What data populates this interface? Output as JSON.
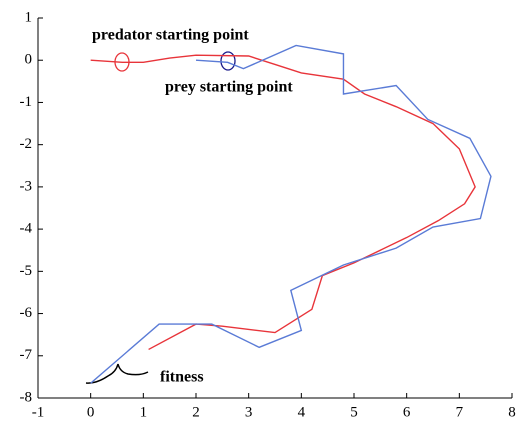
{
  "chart_data": {
    "type": "line",
    "annotations": [
      "predator starting point",
      "prey starting point",
      "fitness"
    ],
    "series": [
      {
        "name": "predator",
        "color": "#e8343a",
        "x": [
          0,
          0.6,
          1,
          1.5,
          2,
          3,
          3.5,
          4,
          4.8,
          5.2,
          5.8,
          6.5,
          7,
          7.3,
          7.1,
          6.6,
          6,
          5,
          4.4,
          4.2,
          3.5,
          2.5,
          2,
          1.1
        ],
        "values": [
          0,
          -0.05,
          -0.05,
          0.05,
          0.12,
          0.1,
          -0.1,
          -0.3,
          -0.45,
          -0.8,
          -1.1,
          -1.5,
          -2.1,
          -3,
          -3.4,
          -3.8,
          -4.2,
          -4.8,
          -5.1,
          -5.9,
          -6.45,
          -6.3,
          -6.25,
          -6.85
        ]
      },
      {
        "name": "prey",
        "color": "#5a7bd6",
        "x": [
          2,
          2.6,
          2.9,
          3.9,
          4.8,
          4.8,
          5.8,
          6.4,
          7.2,
          7.6,
          7.4,
          6.5,
          5.8,
          4.8,
          3.8,
          4,
          3.2,
          2.3,
          1.3,
          0
        ],
        "values": [
          0,
          -0.05,
          -0.2,
          0.35,
          0.15,
          -0.8,
          -0.6,
          -1.4,
          -1.85,
          -2.75,
          -3.75,
          -3.95,
          -4.45,
          -4.85,
          -5.45,
          -6.4,
          -6.8,
          -6.25,
          -6.25,
          -7.65
        ]
      }
    ],
    "xlim": [
      -1,
      8
    ],
    "xticks": [
      -1,
      0,
      1,
      2,
      3,
      4,
      5,
      6,
      7,
      8
    ],
    "ylim": [
      -8,
      1
    ],
    "yticks": [
      -8,
      -7,
      -6,
      -5,
      -4,
      -3,
      -2,
      -1,
      0,
      1
    ]
  }
}
